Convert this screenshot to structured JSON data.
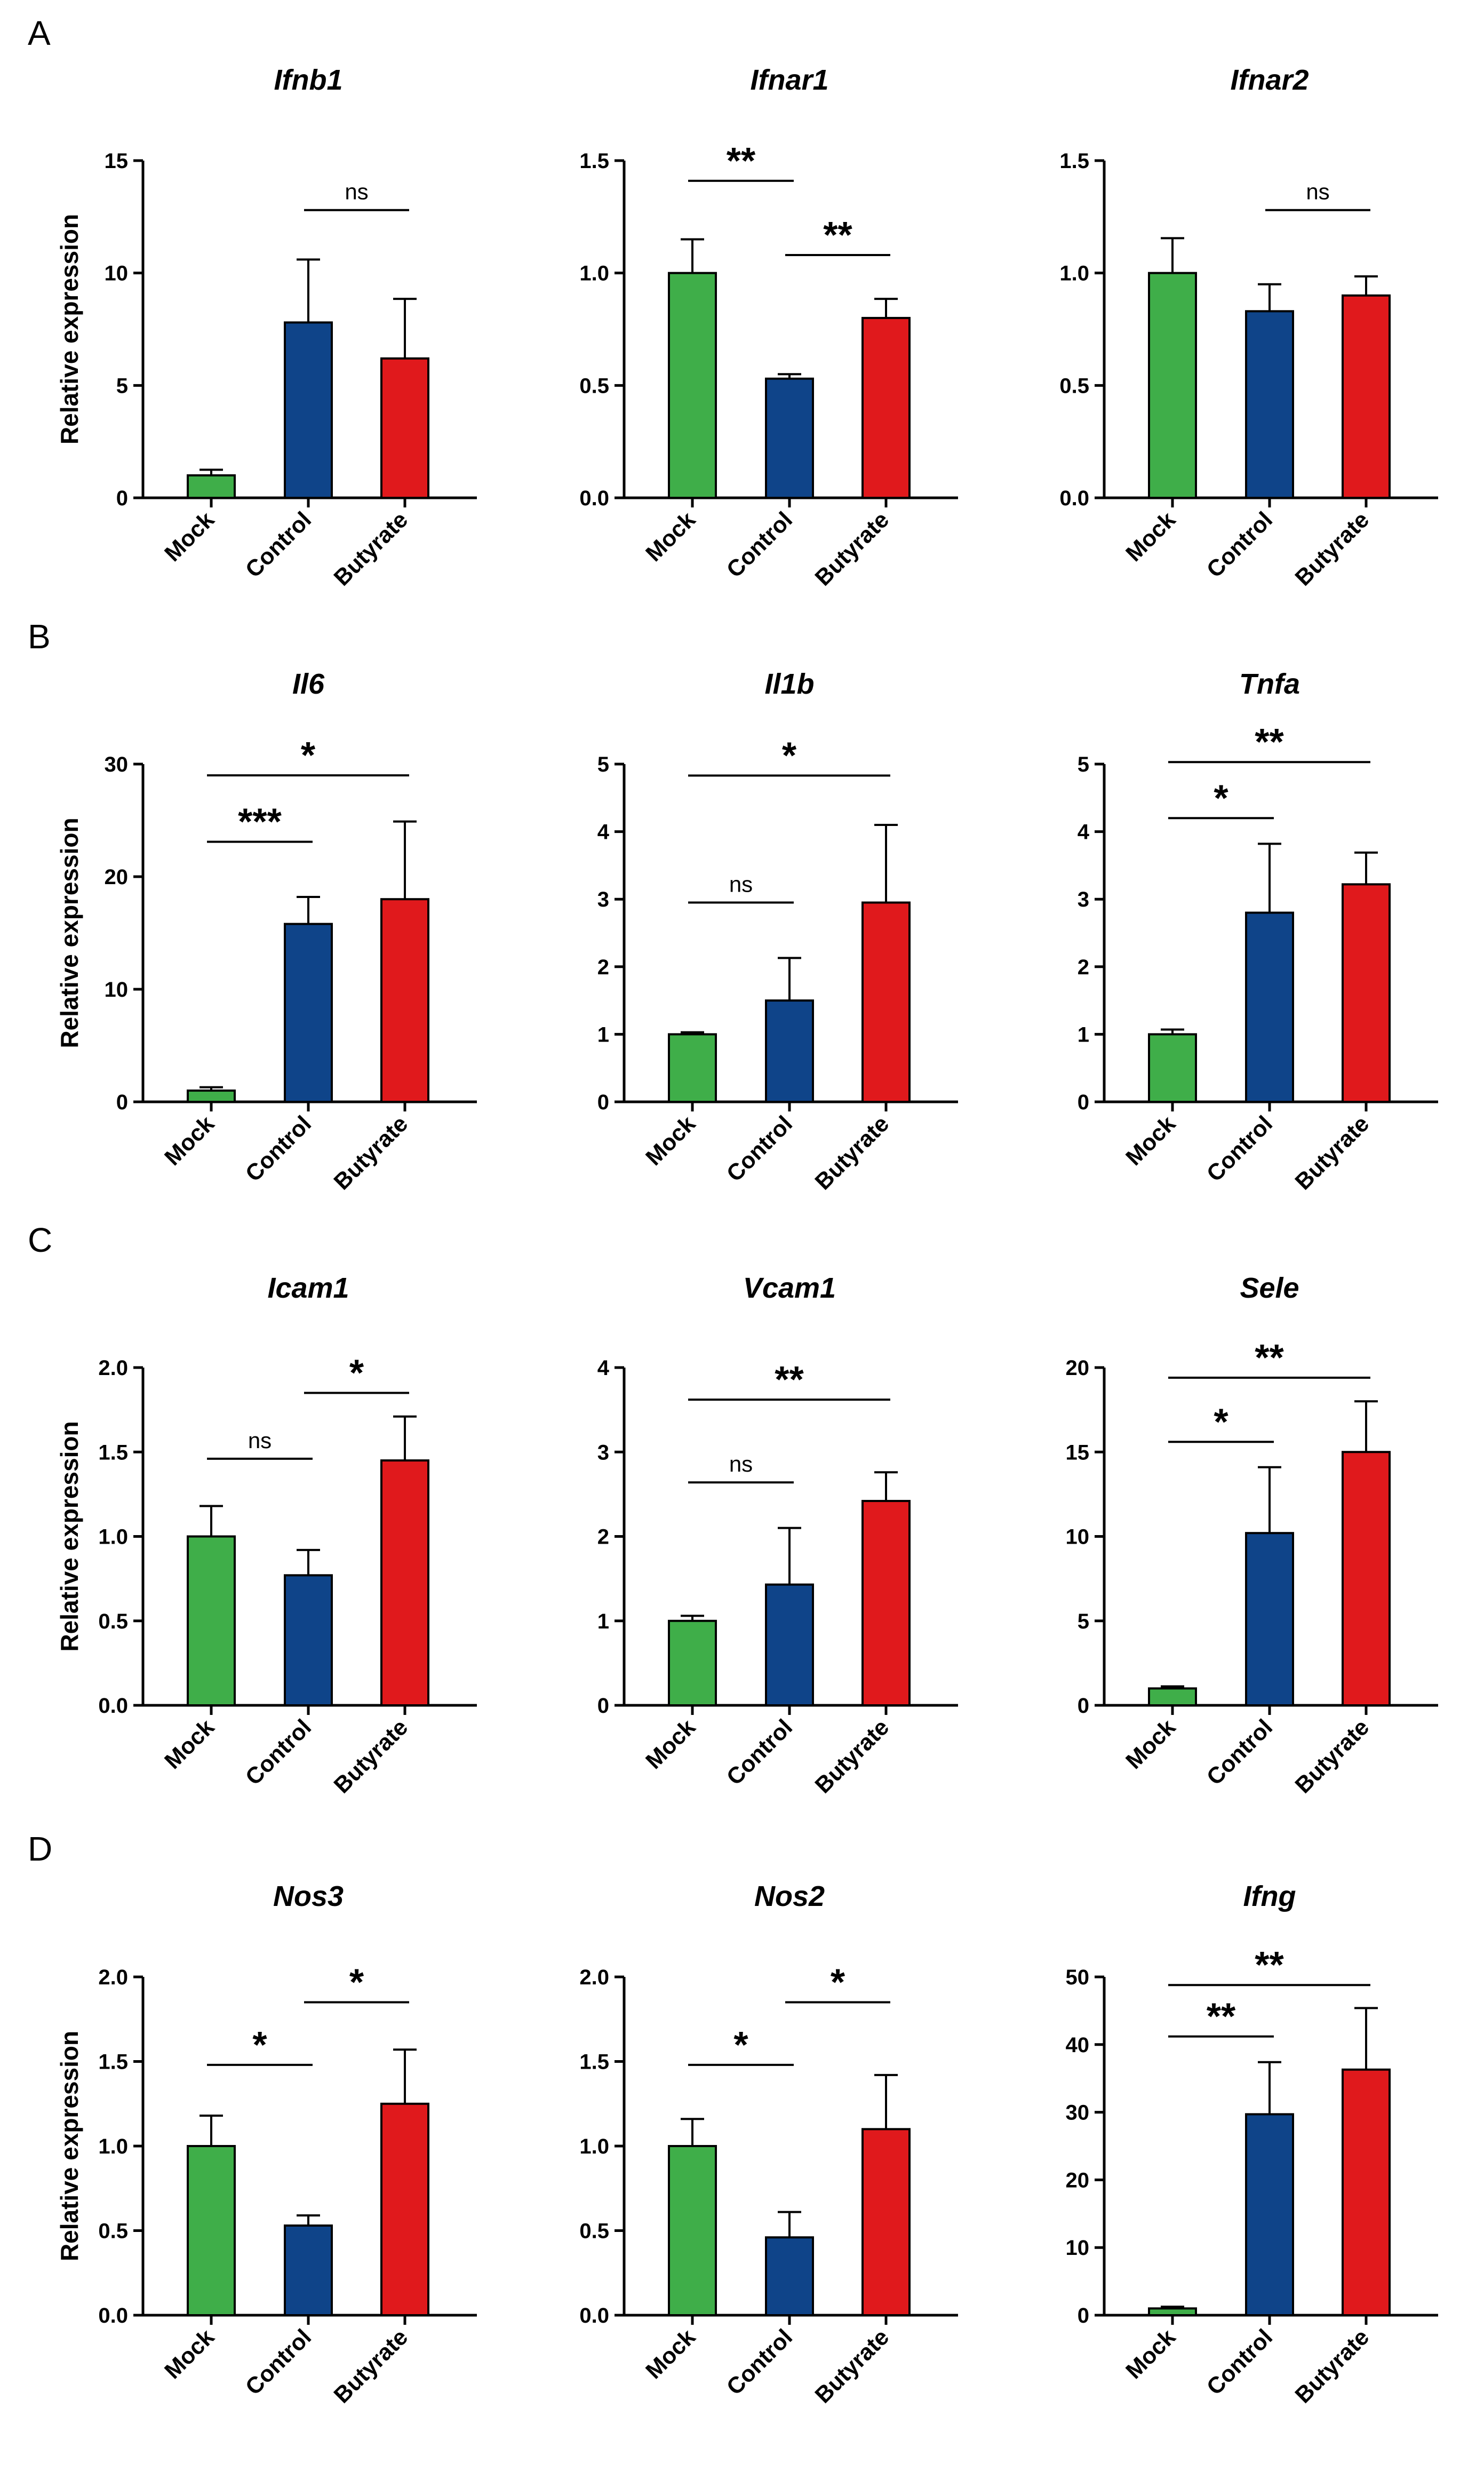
{
  "colors": {
    "Mock": "#3fae49",
    "Control": "#0f4489",
    "Butyrate": "#e0191c",
    "axis": "#000000"
  },
  "panels": [
    "A",
    "B",
    "C",
    "D"
  ],
  "chart_data": [
    {
      "type": "bar",
      "panel": "A",
      "title": "Ifnb1",
      "ylabel": "Relative expression",
      "categories": [
        "Mock",
        "Control",
        "Butyrate"
      ],
      "values": [
        1.0,
        7.8,
        6.2
      ],
      "errors": [
        0.25,
        2.8,
        2.65
      ],
      "ylim": [
        0,
        15
      ],
      "yticks": [
        0,
        5,
        10,
        15
      ],
      "tick_labels": [
        "0",
        "5",
        "10",
        "15"
      ],
      "sig": [
        {
          "a": 1,
          "b": 2,
          "label": "ns",
          "y": 12.8
        }
      ]
    },
    {
      "type": "bar",
      "panel": "A",
      "title": "Ifnar1",
      "ylabel": "",
      "categories": [
        "Mock",
        "Control",
        "Butyrate"
      ],
      "values": [
        1.0,
        0.53,
        0.8
      ],
      "errors": [
        0.15,
        0.02,
        0.085
      ],
      "ylim": [
        0,
        1.5
      ],
      "yticks": [
        0,
        0.5,
        1.0,
        1.5
      ],
      "tick_labels": [
        "0.0",
        "0.5",
        "1.0",
        "1.5"
      ],
      "sig": [
        {
          "a": 0,
          "b": 1,
          "label": "**",
          "y": 1.41
        },
        {
          "a": 1,
          "b": 2,
          "label": "**",
          "y": 1.08
        }
      ]
    },
    {
      "type": "bar",
      "panel": "A",
      "title": "Ifnar2",
      "ylabel": "",
      "categories": [
        "Mock",
        "Control",
        "Butyrate"
      ],
      "values": [
        1.0,
        0.83,
        0.9
      ],
      "errors": [
        0.155,
        0.12,
        0.085
      ],
      "ylim": [
        0,
        1.5
      ],
      "yticks": [
        0,
        0.5,
        1.0,
        1.5
      ],
      "tick_labels": [
        "0.0",
        "0.5",
        "1.0",
        "1.5"
      ],
      "sig": [
        {
          "a": 1,
          "b": 2,
          "label": "ns",
          "y": 1.28
        }
      ]
    },
    {
      "type": "bar",
      "panel": "B",
      "title": "Il6",
      "ylabel": "Relative expression",
      "categories": [
        "Mock",
        "Control",
        "Butyrate"
      ],
      "values": [
        1.0,
        15.8,
        18.0
      ],
      "errors": [
        0.3,
        2.4,
        6.9
      ],
      "ylim": [
        0,
        30
      ],
      "yticks": [
        0,
        10,
        20,
        30
      ],
      "tick_labels": [
        "0",
        "10",
        "20",
        "30"
      ],
      "sig": [
        {
          "a": 0,
          "b": 1,
          "label": "***",
          "y": 23.1
        },
        {
          "a": 0,
          "b": 2,
          "label": "*",
          "y": 29.0
        }
      ]
    },
    {
      "type": "bar",
      "panel": "B",
      "title": "Il1b",
      "ylabel": "",
      "categories": [
        "Mock",
        "Control",
        "Butyrate"
      ],
      "values": [
        1.0,
        1.5,
        2.95
      ],
      "errors": [
        0.03,
        0.63,
        1.15
      ],
      "ylim": [
        0,
        5
      ],
      "yticks": [
        0,
        1,
        2,
        3,
        4,
        5
      ],
      "tick_labels": [
        "0",
        "1",
        "2",
        "3",
        "4",
        "5"
      ],
      "sig": [
        {
          "a": 0,
          "b": 1,
          "label": "ns",
          "y": 2.95
        },
        {
          "a": 0,
          "b": 2,
          "label": "*",
          "y": 4.83
        }
      ]
    },
    {
      "type": "bar",
      "panel": "B",
      "title": "Tnfa",
      "ylabel": "",
      "categories": [
        "Mock",
        "Control",
        "Butyrate"
      ],
      "values": [
        1.0,
        2.8,
        3.22
      ],
      "errors": [
        0.07,
        1.02,
        0.47
      ],
      "ylim": [
        0,
        5
      ],
      "yticks": [
        0,
        1,
        2,
        3,
        4,
        5
      ],
      "tick_labels": [
        "0",
        "1",
        "2",
        "3",
        "4",
        "5"
      ],
      "sig": [
        {
          "a": 0,
          "b": 1,
          "label": "*",
          "y": 4.2
        },
        {
          "a": 0,
          "b": 2,
          "label": "**",
          "y": 5.03
        }
      ]
    },
    {
      "type": "bar",
      "panel": "C",
      "title": "Icam1",
      "ylabel": "Relative expression",
      "categories": [
        "Mock",
        "Control",
        "Butyrate"
      ],
      "values": [
        1.0,
        0.77,
        1.45
      ],
      "errors": [
        0.18,
        0.15,
        0.26
      ],
      "ylim": [
        0,
        2.0
      ],
      "yticks": [
        0,
        0.5,
        1.0,
        1.5,
        2.0
      ],
      "tick_labels": [
        "0.0",
        "0.5",
        "1.0",
        "1.5",
        "2.0"
      ],
      "sig": [
        {
          "a": 0,
          "b": 1,
          "label": "ns",
          "y": 1.46
        },
        {
          "a": 1,
          "b": 2,
          "label": "*",
          "y": 1.85
        }
      ]
    },
    {
      "type": "bar",
      "panel": "C",
      "title": "Vcam1",
      "ylabel": "",
      "categories": [
        "Mock",
        "Control",
        "Butyrate"
      ],
      "values": [
        1.0,
        1.43,
        2.42
      ],
      "errors": [
        0.06,
        0.67,
        0.34
      ],
      "ylim": [
        0,
        4
      ],
      "yticks": [
        0,
        1,
        2,
        3,
        4
      ],
      "tick_labels": [
        "0",
        "1",
        "2",
        "3",
        "4"
      ],
      "sig": [
        {
          "a": 0,
          "b": 1,
          "label": "ns",
          "y": 2.64
        },
        {
          "a": 0,
          "b": 2,
          "label": "**",
          "y": 3.62
        }
      ]
    },
    {
      "type": "bar",
      "panel": "C",
      "title": "Sele",
      "ylabel": "",
      "categories": [
        "Mock",
        "Control",
        "Butyrate"
      ],
      "values": [
        1.0,
        10.2,
        15.0
      ],
      "errors": [
        0.12,
        3.9,
        3.0
      ],
      "ylim": [
        0,
        20
      ],
      "yticks": [
        0,
        5,
        10,
        15,
        20
      ],
      "tick_labels": [
        "0",
        "5",
        "10",
        "15",
        "20"
      ],
      "sig": [
        {
          "a": 0,
          "b": 1,
          "label": "*",
          "y": 15.6
        },
        {
          "a": 0,
          "b": 2,
          "label": "**",
          "y": 19.4
        }
      ]
    },
    {
      "type": "bar",
      "panel": "D",
      "title": "Nos3",
      "ylabel": "Relative expression",
      "categories": [
        "Mock",
        "Control",
        "Butyrate"
      ],
      "values": [
        1.0,
        0.53,
        1.25
      ],
      "errors": [
        0.18,
        0.06,
        0.32
      ],
      "ylim": [
        0,
        2.0
      ],
      "yticks": [
        0,
        0.5,
        1.0,
        1.5,
        2.0
      ],
      "tick_labels": [
        "0.0",
        "0.5",
        "1.0",
        "1.5",
        "2.0"
      ],
      "sig": [
        {
          "a": 0,
          "b": 1,
          "label": "*",
          "y": 1.48
        },
        {
          "a": 1,
          "b": 2,
          "label": "*",
          "y": 1.85
        }
      ]
    },
    {
      "type": "bar",
      "panel": "D",
      "title": "Nos2",
      "ylabel": "",
      "categories": [
        "Mock",
        "Control",
        "Butyrate"
      ],
      "values": [
        1.0,
        0.46,
        1.1
      ],
      "errors": [
        0.16,
        0.15,
        0.32
      ],
      "ylim": [
        0,
        2.0
      ],
      "yticks": [
        0,
        0.5,
        1.0,
        1.5,
        2.0
      ],
      "tick_labels": [
        "0.0",
        "0.5",
        "1.0",
        "1.5",
        "2.0"
      ],
      "sig": [
        {
          "a": 0,
          "b": 1,
          "label": "*",
          "y": 1.48
        },
        {
          "a": 1,
          "b": 2,
          "label": "*",
          "y": 1.85
        }
      ]
    },
    {
      "type": "bar",
      "panel": "D",
      "title": "Ifng",
      "ylabel": "",
      "categories": [
        "Mock",
        "Control",
        "Butyrate"
      ],
      "values": [
        1.0,
        29.7,
        36.3
      ],
      "errors": [
        0.25,
        7.7,
        9.1
      ],
      "ylim": [
        0,
        50
      ],
      "yticks": [
        0,
        10,
        20,
        30,
        40,
        50
      ],
      "tick_labels": [
        "0",
        "10",
        "20",
        "30",
        "40",
        "50"
      ],
      "sig": [
        {
          "a": 0,
          "b": 1,
          "label": "**",
          "y": 41.2
        },
        {
          "a": 0,
          "b": 2,
          "label": "**",
          "y": 48.8
        }
      ]
    }
  ]
}
